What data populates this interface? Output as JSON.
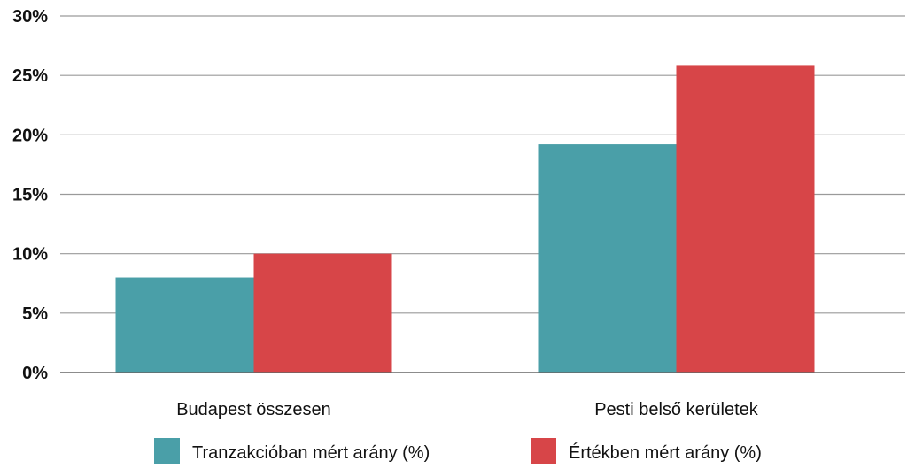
{
  "chart_data": {
    "type": "bar",
    "categories": [
      "Budapest összesen",
      "Pesti belső kerületek"
    ],
    "series": [
      {
        "name": "Tranzakcióban mért arány (%)",
        "color": "#4a9fa8",
        "values": [
          8,
          19.2
        ]
      },
      {
        "name": "Értékben mért arány (%)",
        "color": "#d74548",
        "values": [
          10,
          25.8
        ]
      }
    ],
    "ylim": [
      0,
      30
    ],
    "yticks": [
      "0%",
      "5%",
      "10%",
      "15%",
      "20%",
      "25%",
      "30%"
    ],
    "ytick_values": [
      0,
      5,
      10,
      15,
      20,
      25,
      30
    ],
    "title": "",
    "xlabel": "",
    "ylabel": "",
    "grid": true,
    "legend_position": "bottom"
  }
}
